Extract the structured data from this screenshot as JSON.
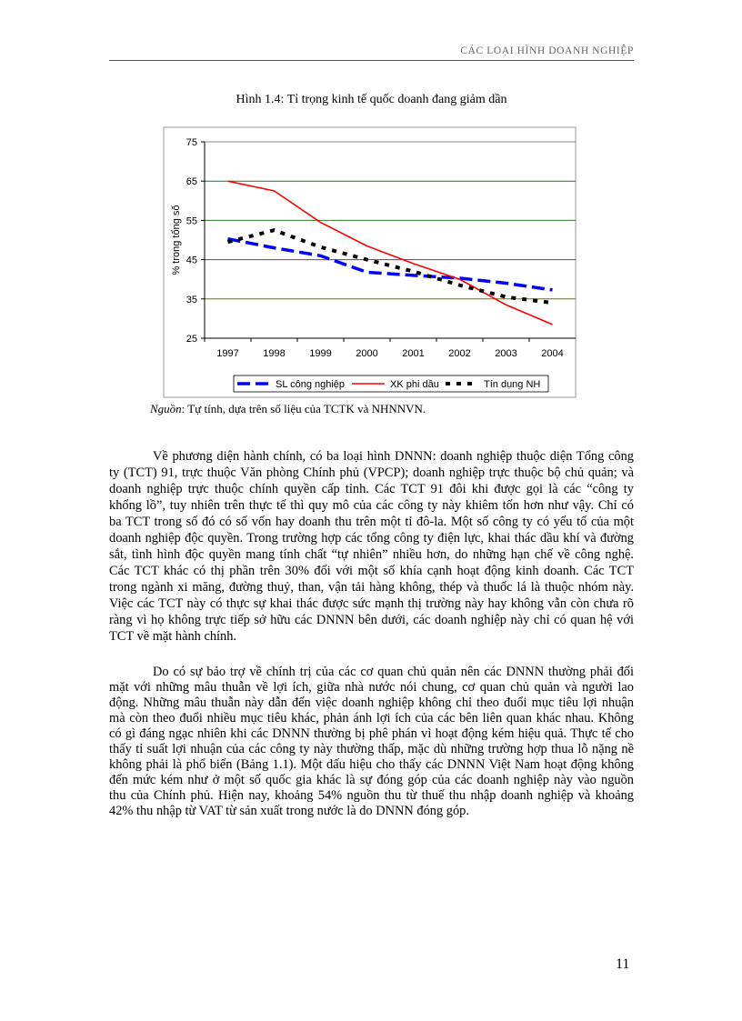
{
  "header": {
    "section_title": "CÁC LOẠI HÌNH DOANH NGHIỆP"
  },
  "figure": {
    "title": "Hình 1.4: Tỉ trọng kinh tế quốc doanh đang giảm dần",
    "source_label": "Nguồn",
    "source_text": ": Tự tính, dựa trên số liệu của TCTK và NHNNVN."
  },
  "chart_data": {
    "type": "line",
    "title": "",
    "xlabel": "",
    "ylabel": "% trong tổng số",
    "categories": [
      "1997",
      "1998",
      "1999",
      "2000",
      "2001",
      "2002",
      "2003",
      "2004"
    ],
    "ylim": [
      25,
      75
    ],
    "yticks": [
      "75",
      "65",
      "55",
      "45",
      "35",
      "25"
    ],
    "grid": true,
    "legend_position": "bottom",
    "series": [
      {
        "name": "SL công nghiệp",
        "color": "#0000FF",
        "style": "dashed",
        "values": [
          50.3,
          48,
          46,
          41.8,
          41,
          40.3,
          39,
          37.3
        ]
      },
      {
        "name": "XK phi dầu",
        "color": "#FF0000",
        "style": "solid",
        "values": [
          65,
          62.5,
          54.5,
          48.5,
          44,
          40,
          33.5,
          28.5
        ]
      },
      {
        "name": "Tín dụng NH",
        "color": "#000000",
        "style": "dotted",
        "values": [
          49.5,
          52.5,
          48.2,
          45,
          42,
          38.5,
          35.5,
          34
        ]
      }
    ]
  },
  "paragraphs": [
    {
      "lines": [
        "Về phương diện hành chính, có ba loại hình DNNN: doanh nghiệp thuộc diện Tổng công",
        "ty (TCT) 91, trực thuộc Văn phòng Chính phủ (VPCP); doanh nghiệp trực thuộc bộ chủ quản; và",
        "doanh nghiệp trực thuộc chính quyền cấp tỉnh. Các TCT 91 đôi khi được gọi là các “công ty",
        "khổng lồ”, tuy nhiên trên thực tế thì quy mô của các công ty này khiêm tốn hơn như vậy. Chỉ có",
        "ba TCT trong số đó có số vốn hay doanh thu trên một tỉ đô-la. Một số công ty có yếu tố của một",
        "doanh nghiệp độc quyền. Trong trường hợp các tổng công ty điện lực, khai thác dầu khí và đường",
        "sắt, tình hình độc quyền mang tính chất “tự nhiên” nhiều hơn, do những hạn chế về công nghệ.",
        "Các TCT khác có thị phần trên 30% đối với một số khía cạnh hoạt động kinh doanh. Các TCT",
        "trong ngành xi măng, đường thuỷ, than, vận tải hàng không, thép và thuốc lá là thuộc nhóm này.",
        "Việc các TCT này có thực sự khai thác được sức mạnh thị trường này hay không vẫn còn chưa rõ",
        "ràng vì họ không trực tiếp sở hữu các DNNN bên dưới, các doanh nghiệp này chỉ có quan hệ với",
        "TCT về mặt hành chính."
      ]
    },
    {
      "lines": [
        "Do có sự bảo trợ về chính trị của các cơ quan chủ quản nên các DNNN thường phải đối",
        "mặt với những mâu thuẫn về lợi ích, giữa nhà nước nói chung, cơ quan chủ quản và người lao",
        "động. Những mâu thuẫn này dẫn đến việc doanh nghiệp không chỉ theo đuổi mục tiêu lợi nhuận",
        "mà còn theo đuổi nhiều mục tiêu khác, phản ánh lợi ích của các bên liên quan khác nhau. Không",
        "có gì đáng ngạc nhiên khi các DNNN thường bị phê phán vì hoạt động kém hiệu quả. Thực tế cho",
        "thấy tỉ suất lợi nhuận của các công ty này thường thấp, mặc dù những trường hợp thua lỗ nặng nề",
        "không phải là phổ biến (Bảng 1.1). Một dấu hiệu cho thấy các DNNN Việt Nam hoạt động không",
        "đến mức kém như ở một số quốc gia khác là sự đóng góp của các doanh nghiệp này vào nguồn",
        "thu của Chính phủ. Hiện nay, khoảng 54% nguồn thu từ thuế thu nhập doanh nghiệp và khoảng",
        "42% thu nhập từ VAT từ sản xuất trong nước là do DNNN đóng góp."
      ]
    }
  ],
  "footer": {
    "page_number": "11"
  }
}
